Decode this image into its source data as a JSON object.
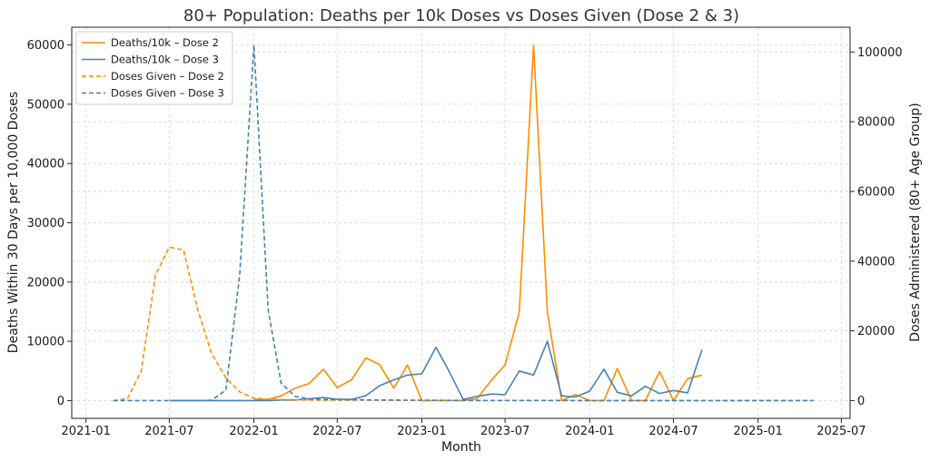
{
  "chart_data": {
    "type": "line",
    "title": "80+ Population: Deaths per 10k Doses vs Doses Given (Dose 2 & 3)",
    "xlabel": "Month",
    "ylabel_left": "Deaths Within 30 Days per 10,000 Doses",
    "ylabel_right": "Doses Administered (80+ Age Group)",
    "x_ticks": [
      "2021-01",
      "2021-07",
      "2022-01",
      "2022-07",
      "2023-01",
      "2023-07",
      "2024-01",
      "2024-07",
      "2025-01",
      "2025-07"
    ],
    "y_left_ticks": [
      0,
      10000,
      20000,
      30000,
      40000,
      50000,
      60000
    ],
    "y_right_ticks": [
      0,
      20000,
      40000,
      60000,
      80000,
      100000
    ],
    "ylim_left": [
      -3000,
      63000
    ],
    "ylim_right": [
      -5100,
      107100
    ],
    "xlim": [
      "2020-12-01",
      "2025-07-20"
    ],
    "grid": true,
    "legend_position": "top-left",
    "series": [
      {
        "name": "Deaths/10k – Dose 2",
        "axis": "left",
        "color": "#ff8c00",
        "dash": "solid",
        "x": [
          "2022-01",
          "2022-02",
          "2022-03",
          "2022-04",
          "2022-05",
          "2022-06",
          "2022-07",
          "2022-08",
          "2022-09",
          "2022-10",
          "2022-11",
          "2022-12",
          "2023-01",
          "2023-02",
          "2023-03",
          "2023-04",
          "2023-05",
          "2023-06",
          "2023-07",
          "2023-08",
          "2023-09",
          "2023-10",
          "2023-11",
          "2023-12",
          "2024-01",
          "2024-02",
          "2024-03",
          "2024-04",
          "2024-05",
          "2024-06",
          "2024-07",
          "2024-08",
          "2024-09"
        ],
        "values": [
          200,
          200,
          800,
          2100,
          2900,
          5300,
          2200,
          3500,
          7200,
          6100,
          2100,
          6000,
          0,
          0,
          0,
          0,
          300,
          3400,
          6000,
          15000,
          60000,
          15000,
          0,
          1000,
          0,
          0,
          5400,
          0,
          0,
          4900,
          0,
          3700,
          4300
        ]
      },
      {
        "name": "Deaths/10k – Dose 3",
        "axis": "left",
        "color": "#4682b4",
        "dash": "solid",
        "x": [
          "2021-07",
          "2021-08",
          "2021-09",
          "2021-10",
          "2021-11",
          "2021-12",
          "2022-01",
          "2022-02",
          "2022-03",
          "2022-04",
          "2022-05",
          "2022-06",
          "2022-07",
          "2022-08",
          "2022-09",
          "2022-10",
          "2022-11",
          "2022-12",
          "2023-01",
          "2023-02",
          "2023-03",
          "2023-04",
          "2023-05",
          "2023-06",
          "2023-07",
          "2023-08",
          "2023-09",
          "2023-10",
          "2023-11",
          "2023-12",
          "2024-01",
          "2024-02",
          "2024-03",
          "2024-04",
          "2024-05",
          "2024-06",
          "2024-07",
          "2024-08",
          "2024-09"
        ],
        "values": [
          0,
          0,
          0,
          0,
          0,
          0,
          0,
          0,
          100,
          100,
          300,
          500,
          200,
          200,
          800,
          2500,
          3500,
          4300,
          4500,
          9000,
          5000,
          200,
          700,
          1100,
          1000,
          5000,
          4300,
          10000,
          800,
          600,
          1600,
          5300,
          1400,
          800,
          2400,
          1200,
          1700,
          1300,
          8600
        ]
      },
      {
        "name": "Doses Given – Dose 2",
        "axis": "right",
        "color": "#ff8c00",
        "dash": "dashed",
        "x": [
          "2021-03",
          "2021-04",
          "2021-05",
          "2021-06",
          "2021-07",
          "2021-08",
          "2021-09",
          "2021-10",
          "2021-11",
          "2021-12",
          "2022-01",
          "2022-02",
          "2022-03",
          "2022-04",
          "2022-05",
          "2022-06",
          "2022-07",
          "2022-08",
          "2022-09",
          "2022-10",
          "2022-11",
          "2022-12",
          "2023-01",
          "2023-02",
          "2023-03",
          "2023-04",
          "2023-05",
          "2023-06",
          "2023-07",
          "2023-08",
          "2023-09",
          "2023-10",
          "2023-11",
          "2023-12",
          "2024-01",
          "2024-02",
          "2024-03",
          "2024-04",
          "2024-05",
          "2024-06",
          "2024-07",
          "2024-08",
          "2024-09",
          "2024-10",
          "2024-11",
          "2024-12",
          "2025-01",
          "2025-02",
          "2025-03",
          "2025-04",
          "2025-05"
        ],
        "values": [
          0,
          500,
          8500,
          36000,
          44000,
          43200,
          26000,
          13500,
          6500,
          2500,
          700,
          400,
          300,
          200,
          150,
          100,
          100,
          100,
          100,
          80,
          80,
          60,
          60,
          50,
          50,
          40,
          40,
          30,
          30,
          30,
          30,
          20,
          20,
          20,
          20,
          10,
          10,
          10,
          10,
          10,
          10,
          10,
          10,
          10,
          10,
          10,
          10,
          10,
          10,
          10,
          10
        ]
      },
      {
        "name": "Doses Given – Dose 3",
        "axis": "right",
        "color": "#4682b4",
        "dash": "dashed",
        "x": [
          "2021-03",
          "2021-04",
          "2021-05",
          "2021-06",
          "2021-07",
          "2021-08",
          "2021-09",
          "2021-10",
          "2021-11",
          "2021-12",
          "2022-01",
          "2022-02",
          "2022-03",
          "2022-04",
          "2022-05",
          "2022-06",
          "2022-07",
          "2022-08",
          "2022-09",
          "2022-10",
          "2022-11",
          "2022-12",
          "2023-01",
          "2023-02",
          "2023-03",
          "2023-04",
          "2023-05",
          "2023-06",
          "2023-07",
          "2023-08",
          "2023-09",
          "2023-10",
          "2023-11",
          "2023-12",
          "2024-01",
          "2024-02",
          "2024-03",
          "2024-04",
          "2024-05",
          "2024-06",
          "2024-07",
          "2024-08",
          "2024-09",
          "2024-10",
          "2024-11",
          "2024-12",
          "2025-01",
          "2025-02",
          "2025-03",
          "2025-04",
          "2025-05"
        ],
        "values": [
          0,
          0,
          0,
          0,
          0,
          0,
          0,
          100,
          3000,
          36000,
          102000,
          26000,
          5000,
          1200,
          500,
          300,
          300,
          200,
          200,
          150,
          150,
          100,
          100,
          80,
          60,
          50,
          40,
          30,
          30,
          20,
          20,
          20,
          20,
          10,
          10,
          10,
          10,
          10,
          10,
          10,
          10,
          10,
          10,
          10,
          10,
          10,
          10,
          10,
          10,
          10,
          10
        ]
      }
    ]
  }
}
